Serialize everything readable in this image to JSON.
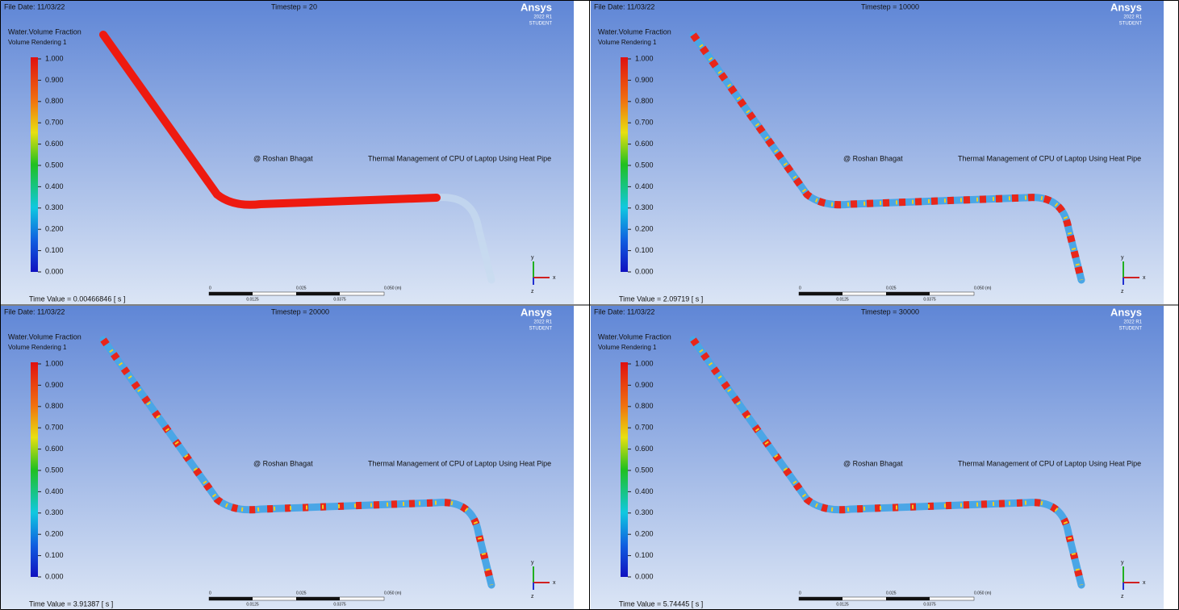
{
  "panels": [
    {
      "file_date": "File Date: 11/03/22",
      "timestep": "Timestep = 20",
      "logo": "Ansys",
      "version": "2022 R1",
      "edition": "STUDENT",
      "variable": "Water.Volume Fraction",
      "rendering": "Volume Rendering 1",
      "legend_ticks": [
        "1.000",
        "0.900",
        "0.800",
        "0.700",
        "0.600",
        "0.500",
        "0.400",
        "0.300",
        "0.200",
        "0.100",
        "0.000"
      ],
      "author": "@ Roshan Bhagat",
      "project": "Thermal Management of CPU of  Laptop Using Heat Pipe",
      "time_value": "Time Value = 0.00466846 [ s ]",
      "scale_top": [
        "0",
        "0.025",
        "0.050 (m)"
      ],
      "scale_bottom": [
        "0.0125",
        "0.0375"
      ],
      "axes": [
        "y",
        "x",
        "z"
      ]
    },
    {
      "file_date": "File Date: 11/03/22",
      "timestep": "Timestep = 10000",
      "logo": "Ansys",
      "version": "2022 R1",
      "edition": "STUDENT",
      "variable": "Water.Volume Fraction",
      "rendering": "Volume Rendering 1",
      "legend_ticks": [
        "1.000",
        "0.900",
        "0.800",
        "0.700",
        "0.600",
        "0.500",
        "0.400",
        "0.300",
        "0.200",
        "0.100",
        "0.000"
      ],
      "author": "@ Roshan Bhagat",
      "project": "Thermal Management of CPU of  Laptop Using Heat Pipe",
      "time_value": "Time Value = 2.09719 [ s ]",
      "scale_top": [
        "0",
        "0.025",
        "0.050 (m)"
      ],
      "scale_bottom": [
        "0.0125",
        "0.0375"
      ],
      "axes": [
        "y",
        "x",
        "z"
      ]
    },
    {
      "file_date": "File Date: 11/03/22",
      "timestep": "Timestep = 20000",
      "logo": "Ansys",
      "version": "2022 R1",
      "edition": "STUDENT",
      "variable": "Water.Volume Fraction",
      "rendering": "Volume Rendering 1",
      "legend_ticks": [
        "1.000",
        "0.900",
        "0.800",
        "0.700",
        "0.600",
        "0.500",
        "0.400",
        "0.300",
        "0.200",
        "0.100",
        "0.000"
      ],
      "author": "@ Roshan Bhagat",
      "project": "Thermal Management of CPU of  Laptop Using Heat Pipe",
      "time_value": "Time Value = 3.91387 [ s ]",
      "scale_top": [
        "0",
        "0.025",
        "0.050 (m)"
      ],
      "scale_bottom": [
        "0.0125",
        "0.0375"
      ],
      "axes": [
        "y",
        "x",
        "z"
      ]
    },
    {
      "file_date": "File Date: 11/03/22",
      "timestep": "Timestep = 30000",
      "logo": "Ansys",
      "version": "2022 R1",
      "edition": "STUDENT",
      "variable": "Water.Volume Fraction",
      "rendering": "Volume Rendering 1",
      "legend_ticks": [
        "1.000",
        "0.900",
        "0.800",
        "0.700",
        "0.600",
        "0.500",
        "0.400",
        "0.300",
        "0.200",
        "0.100",
        "0.000"
      ],
      "author": "@ Roshan Bhagat",
      "project": "Thermal Management of CPU of  Laptop Using Heat Pipe",
      "time_value": "Time Value = 5.74445 [ s ]",
      "scale_top": [
        "0",
        "0.025",
        "0.050 (m)"
      ],
      "scale_bottom": [
        "0.0125",
        "0.0375"
      ],
      "axes": [
        "y",
        "x",
        "z"
      ]
    }
  ]
}
